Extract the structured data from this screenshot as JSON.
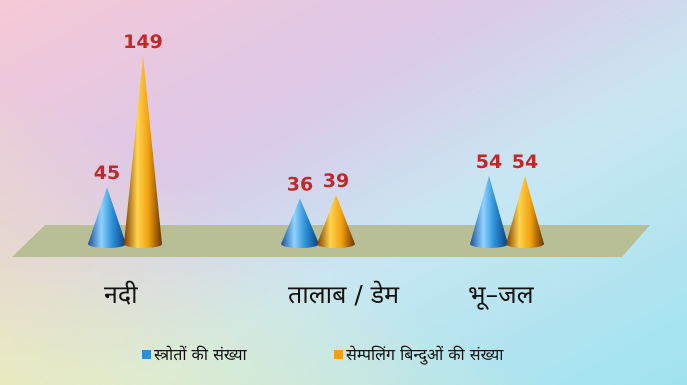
{
  "chart_data": {
    "type": "bar",
    "bar_shape": "cone",
    "categories": [
      "नदी",
      "तालाब / डेम",
      "भू–जल"
    ],
    "series": [
      {
        "name": "स्त्रोतों की संख्या",
        "values": [
          45,
          36,
          54
        ],
        "color": "#2a8fd6"
      },
      {
        "name": "सेम्पलिंग बिन्दुओं की संख्या",
        "values": [
          149,
          39,
          54
        ],
        "color": "#f0a010"
      }
    ],
    "legend_position": "bottom",
    "value_label_color": "#c0282a",
    "platform_color": "#b8bf96"
  }
}
